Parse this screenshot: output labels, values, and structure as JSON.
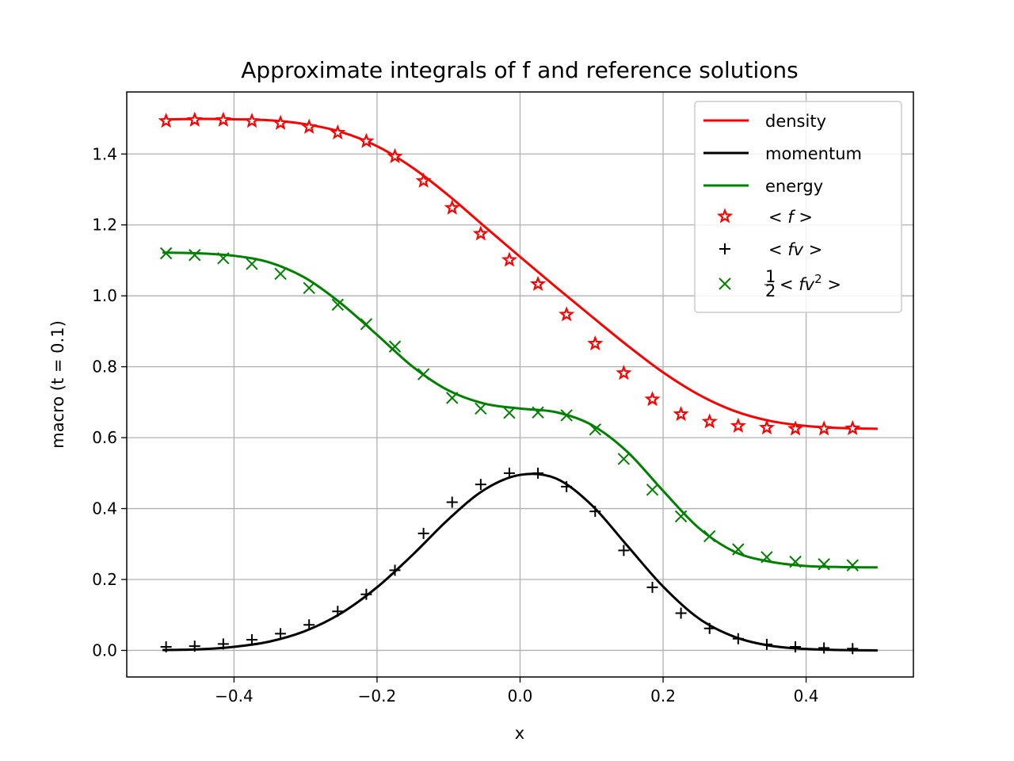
{
  "chart_data": {
    "type": "line",
    "title": "Approximate integrals of f and reference solutions",
    "xlabel": "x",
    "ylabel": "macro (t = 0.1)",
    "xlim": [
      -0.55,
      0.55
    ],
    "ylim": [
      -0.075,
      1.575
    ],
    "xticks": [
      -0.4,
      -0.2,
      0.0,
      0.2,
      0.4
    ],
    "xtick_labels": [
      "−0.4",
      "−0.2",
      "0.0",
      "0.2",
      "0.4"
    ],
    "yticks": [
      0.0,
      0.2,
      0.4,
      0.6,
      0.8,
      1.0,
      1.2,
      1.4
    ],
    "ytick_labels": [
      "0.0",
      "0.2",
      "0.4",
      "0.6",
      "0.8",
      "1.0",
      "1.2",
      "1.4"
    ],
    "grid": true,
    "legend_position": "top-right",
    "series": [
      {
        "name": "density",
        "kind": "line",
        "color": "#ff0000",
        "x": [
          -0.5,
          -0.45,
          -0.4,
          -0.35,
          -0.3,
          -0.25,
          -0.2,
          -0.15,
          -0.1,
          -0.05,
          0.0,
          0.05,
          0.1,
          0.15,
          0.2,
          0.25,
          0.3,
          0.35,
          0.4,
          0.45,
          0.5
        ],
        "y": [
          1.497,
          1.499,
          1.498,
          1.495,
          1.484,
          1.462,
          1.422,
          1.361,
          1.283,
          1.196,
          1.11,
          1.025,
          0.942,
          0.86,
          0.784,
          0.721,
          0.675,
          0.647,
          0.633,
          0.627,
          0.625
        ]
      },
      {
        "name": "momentum",
        "kind": "line",
        "color": "#000000",
        "x": [
          -0.5,
          -0.45,
          -0.4,
          -0.35,
          -0.3,
          -0.25,
          -0.2,
          -0.15,
          -0.1,
          -0.05,
          0.0,
          0.05,
          0.1,
          0.15,
          0.2,
          0.25,
          0.3,
          0.35,
          0.4,
          0.45,
          0.5
        ],
        "y": [
          0.001,
          0.003,
          0.01,
          0.025,
          0.055,
          0.105,
          0.178,
          0.27,
          0.37,
          0.453,
          0.495,
          0.485,
          0.41,
          0.295,
          0.18,
          0.09,
          0.038,
          0.013,
          0.004,
          0.001,
          0.0
        ]
      },
      {
        "name": "energy",
        "kind": "line",
        "color": "#008000",
        "x": [
          -0.5,
          -0.45,
          -0.4,
          -0.35,
          -0.3,
          -0.25,
          -0.2,
          -0.15,
          -0.1,
          -0.05,
          0.0,
          0.05,
          0.1,
          0.15,
          0.2,
          0.25,
          0.3,
          0.35,
          0.4,
          0.45,
          0.5
        ],
        "y": [
          1.122,
          1.12,
          1.113,
          1.094,
          1.05,
          0.978,
          0.89,
          0.8,
          0.733,
          0.696,
          0.682,
          0.672,
          0.636,
          0.56,
          0.45,
          0.345,
          0.278,
          0.25,
          0.238,
          0.235,
          0.234
        ]
      },
      {
        "name": "<f>",
        "kind": "markers",
        "marker": "star",
        "color": "#ff0000",
        "x": [
          -0.495,
          -0.455,
          -0.415,
          -0.375,
          -0.335,
          -0.295,
          -0.255,
          -0.215,
          -0.175,
          -0.135,
          -0.095,
          -0.055,
          -0.015,
          0.025,
          0.065,
          0.105,
          0.145,
          0.185,
          0.225,
          0.265,
          0.305,
          0.345,
          0.385,
          0.425,
          0.465
        ],
        "y": [
          1.493,
          1.496,
          1.496,
          1.493,
          1.487,
          1.476,
          1.46,
          1.436,
          1.393,
          1.324,
          1.248,
          1.175,
          1.101,
          1.033,
          0.947,
          0.865,
          0.782,
          0.708,
          0.666,
          0.645,
          0.633,
          0.628,
          0.625,
          0.625,
          0.626
        ]
      },
      {
        "name": "<fv>",
        "kind": "markers",
        "marker": "plus",
        "color": "#000000",
        "x": [
          -0.495,
          -0.455,
          -0.415,
          -0.375,
          -0.335,
          -0.295,
          -0.255,
          -0.215,
          -0.175,
          -0.135,
          -0.095,
          -0.055,
          -0.015,
          0.025,
          0.065,
          0.105,
          0.145,
          0.185,
          0.225,
          0.265,
          0.305,
          0.345,
          0.385,
          0.425,
          0.465
        ],
        "y": [
          0.01,
          0.012,
          0.018,
          0.03,
          0.047,
          0.072,
          0.11,
          0.158,
          0.226,
          0.33,
          0.418,
          0.468,
          0.5,
          0.5,
          0.462,
          0.392,
          0.282,
          0.178,
          0.105,
          0.062,
          0.033,
          0.017,
          0.01,
          0.007,
          0.005
        ]
      },
      {
        "name": "1/2 <fv^2>",
        "kind": "markers",
        "marker": "x",
        "color": "#008000",
        "x": [
          -0.495,
          -0.455,
          -0.415,
          -0.375,
          -0.335,
          -0.295,
          -0.255,
          -0.215,
          -0.175,
          -0.135,
          -0.095,
          -0.055,
          -0.015,
          0.025,
          0.065,
          0.105,
          0.145,
          0.185,
          0.225,
          0.265,
          0.305,
          0.345,
          0.385,
          0.425,
          0.465
        ],
        "y": [
          1.12,
          1.115,
          1.106,
          1.09,
          1.062,
          1.022,
          0.975,
          0.92,
          0.857,
          0.779,
          0.712,
          0.682,
          0.67,
          0.671,
          0.663,
          0.623,
          0.54,
          0.453,
          0.378,
          0.322,
          0.285,
          0.263,
          0.25,
          0.243,
          0.24
        ]
      }
    ]
  },
  "legend": {
    "items": [
      {
        "label": "density",
        "math": false,
        "frac": "",
        "sup": ""
      },
      {
        "label": "momentum",
        "math": false,
        "frac": "",
        "sup": ""
      },
      {
        "label": "energy",
        "math": false,
        "frac": "",
        "sup": ""
      },
      {
        "label": "< f >",
        "math": true,
        "frac": "",
        "sup": ""
      },
      {
        "label": "< fv >",
        "math": true,
        "frac": "",
        "sup": ""
      },
      {
        "label": "< fv",
        "math": true,
        "frac": "1/2",
        "sup": "2",
        "tail": " >"
      }
    ]
  }
}
